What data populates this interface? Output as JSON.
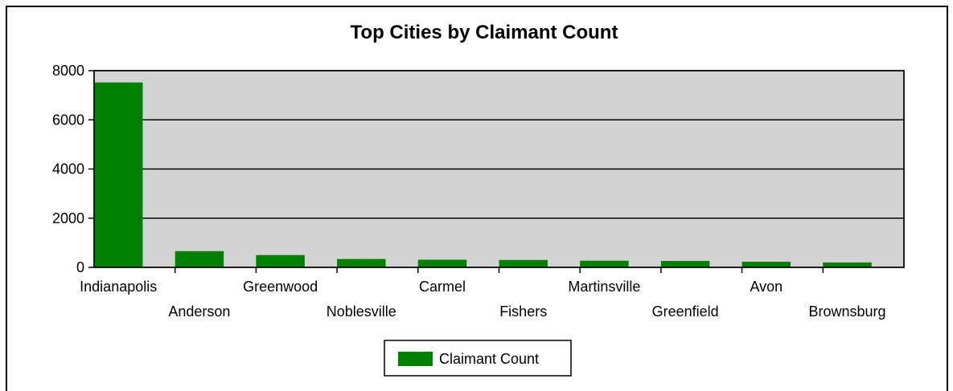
{
  "chart_data": {
    "type": "bar",
    "title": "Top Cities by Claimant Count",
    "xlabel": "",
    "ylabel": "",
    "categories": [
      "Indianapolis",
      "Anderson",
      "Greenwood",
      "Noblesville",
      "Carmel",
      "Fishers",
      "Martinsville",
      "Greenfield",
      "Avon",
      "Brownsburg"
    ],
    "series": [
      {
        "name": "Claimant Count",
        "values": [
          7520,
          660,
          500,
          340,
          310,
          300,
          270,
          260,
          230,
          200
        ]
      }
    ],
    "ylim": [
      0,
      8000
    ],
    "yticks": [
      0,
      2000,
      4000,
      6000,
      8000
    ],
    "grid": true,
    "legend_position": "bottom-center",
    "colors": {
      "bar": "#008000",
      "plot_background": "#d3d3d3",
      "axis": "#000000"
    }
  }
}
